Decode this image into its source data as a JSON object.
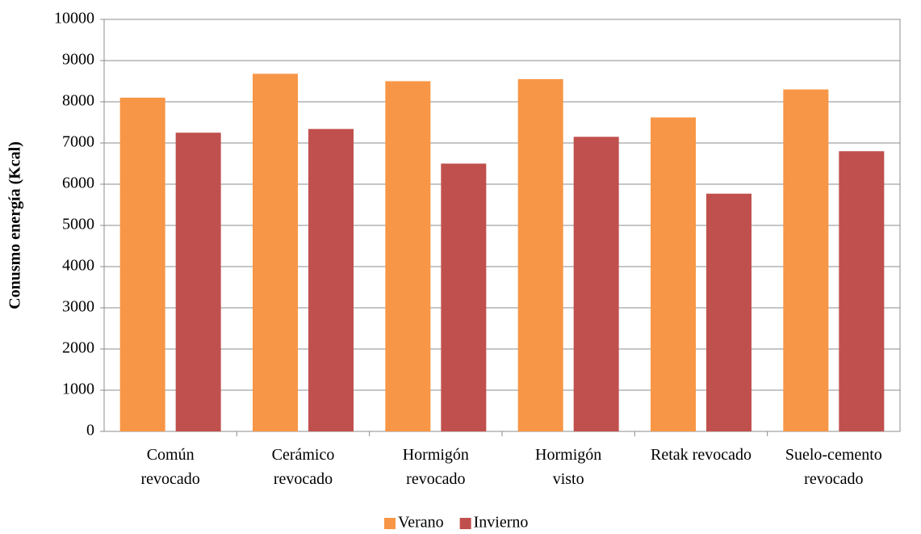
{
  "chart_data": {
    "type": "bar",
    "y_label": "Conusmo energía (Kcal)",
    "categories": [
      [
        "Común",
        "revocado"
      ],
      [
        "Cerámico",
        "revocado"
      ],
      [
        "Hormigón",
        "revocado"
      ],
      [
        "Hormigón",
        "visto"
      ],
      [
        "Retak revocado"
      ],
      [
        "Suelo-cemento",
        "revocado"
      ]
    ],
    "series": [
      {
        "name": "Verano",
        "color": "#f79646",
        "values": [
          8100,
          8680,
          8500,
          8550,
          7620,
          8300
        ]
      },
      {
        "name": "Invierno",
        "color": "#c0504d",
        "values": [
          7250,
          7340,
          6500,
          7150,
          5770,
          6800
        ]
      }
    ],
    "ylim": [
      0,
      10000
    ],
    "yticks": [
      0,
      1000,
      2000,
      3000,
      4000,
      5000,
      6000,
      7000,
      8000,
      9000,
      10000
    ],
    "grid": true,
    "legend": "bottom"
  }
}
